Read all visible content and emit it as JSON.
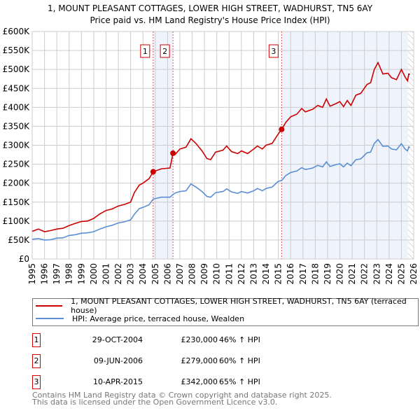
{
  "chart_data": {
    "type": "line",
    "title": "1, MOUNT PLEASANT COTTAGES, LOWER HIGH STREET, WADHURST, TN5 6AY",
    "subtitle": "Price paid vs. HM Land Registry's House Price Index (HPI)",
    "xlim": [
      1995,
      2026
    ],
    "ylim": [
      0,
      600000
    ],
    "x_ticks": [
      "1995",
      "1996",
      "1997",
      "1998",
      "1999",
      "2000",
      "2001",
      "2002",
      "2003",
      "2004",
      "2005",
      "2006",
      "2007",
      "2008",
      "2009",
      "2010",
      "2011",
      "2012",
      "2013",
      "2014",
      "2015",
      "2016",
      "2017",
      "2018",
      "2019",
      "2020",
      "2021",
      "2022",
      "2023",
      "2024",
      "2025",
      "2026"
    ],
    "y_ticks": [
      {
        "v": 0,
        "label": "£0"
      },
      {
        "v": 50000,
        "label": "£50K"
      },
      {
        "v": 100000,
        "label": "£100K"
      },
      {
        "v": 150000,
        "label": "£150K"
      },
      {
        "v": 200000,
        "label": "£200K"
      },
      {
        "v": 250000,
        "label": "£250K"
      },
      {
        "v": 300000,
        "label": "£300K"
      },
      {
        "v": 350000,
        "label": "£350K"
      },
      {
        "v": 400000,
        "label": "£400K"
      },
      {
        "v": 450000,
        "label": "£450K"
      },
      {
        "v": 500000,
        "label": "£500K"
      },
      {
        "v": 550000,
        "label": "£550K"
      },
      {
        "v": 600000,
        "label": "£600K"
      }
    ],
    "grid": true,
    "x": [
      1995.0,
      1995.5,
      1996.0,
      1996.5,
      1997.0,
      1997.5,
      1998.0,
      1998.5,
      1999.0,
      1999.5,
      2000.0,
      2000.5,
      2001.0,
      2001.5,
      2002.0,
      2002.5,
      2003.0,
      2003.3,
      2003.7,
      2004.0,
      2004.5,
      2004.83,
      2005.5,
      2006.2,
      2006.44,
      2006.6,
      2007.0,
      2007.5,
      2007.9,
      2008.3,
      2008.8,
      2009.2,
      2009.5,
      2009.9,
      2010.5,
      2010.8,
      2011.2,
      2011.7,
      2012.0,
      2012.5,
      2013.0,
      2013.3,
      2013.7,
      2014.0,
      2014.5,
      2015.0,
      2015.27,
      2015.6,
      2016.0,
      2016.5,
      2016.9,
      2017.2,
      2017.8,
      2018.2,
      2018.6,
      2018.9,
      2019.2,
      2019.7,
      2020.0,
      2020.3,
      2020.6,
      2020.9,
      2021.3,
      2021.7,
      2022.2,
      2022.5,
      2022.8,
      2023.1,
      2023.5,
      2023.9,
      2024.2,
      2024.6,
      2025.0,
      2025.3,
      2025.5,
      2025.6,
      2025.7
    ],
    "series": [
      {
        "name": "1, MOUNT PLEASANT COTTAGES, LOWER HIGH STREET, WADHURST, TN5 6AY (terraced house)",
        "color": "#cc0000",
        "values": [
          73,
          79,
          72,
          75,
          79,
          81,
          88,
          94,
          99,
          100,
          107,
          119,
          128,
          132,
          140,
          144,
          150,
          175,
          195,
          200,
          212,
          230,
          238,
          240,
          279,
          275,
          290,
          295,
          317,
          305,
          285,
          265,
          262,
          282,
          287,
          298,
          283,
          278,
          285,
          278,
          290,
          298,
          290,
          300,
          305,
          330,
          342,
          360,
          375,
          382,
          397,
          388,
          395,
          405,
          400,
          422,
          403,
          410,
          415,
          402,
          418,
          405,
          432,
          437,
          460,
          465,
          500,
          518,
          488,
          490,
          478,
          473,
          500,
          480,
          470,
          488,
          487
        ]
      },
      {
        "name": "HPI: Average price, terraced house, Wealden",
        "color": "#5b8fd4",
        "values": [
          52,
          54,
          50,
          51,
          55,
          56,
          62,
          64,
          68,
          69,
          72,
          79,
          85,
          89,
          95,
          98,
          103,
          118,
          133,
          136,
          143,
          158,
          163,
          163,
          170,
          174,
          178,
          180,
          198,
          190,
          178,
          165,
          163,
          175,
          178,
          185,
          177,
          173,
          178,
          174,
          180,
          186,
          180,
          186,
          190,
          205,
          207,
          220,
          228,
          232,
          241,
          236,
          240,
          247,
          243,
          256,
          244,
          249,
          251,
          243,
          253,
          246,
          262,
          264,
          280,
          282,
          305,
          315,
          297,
          298,
          290,
          288,
          304,
          290,
          285,
          296,
          294
        ]
      }
    ],
    "value_unit": "thousands GBP",
    "sales": [
      {
        "id": "1",
        "x": 2004.83,
        "price": 230,
        "date": "29-OCT-2004",
        "price_label": "£230,000",
        "hpi_label": "46% ↑ HPI"
      },
      {
        "id": "2",
        "x": 2006.44,
        "price": 279,
        "date": "09-JUN-2006",
        "price_label": "£279,000",
        "hpi_label": "60% ↑ HPI"
      },
      {
        "id": "3",
        "x": 2015.27,
        "price": 342,
        "date": "10-APR-2015",
        "price_label": "£342,000",
        "hpi_label": "65% ↑ HPI"
      }
    ],
    "forecast_start": 2025.55,
    "legend": "below"
  },
  "footer": {
    "line1": "Contains HM Land Registry data © Crown copyright and database right 2025.",
    "line2": "This data is licensed under the Open Government Licence v3.0."
  }
}
